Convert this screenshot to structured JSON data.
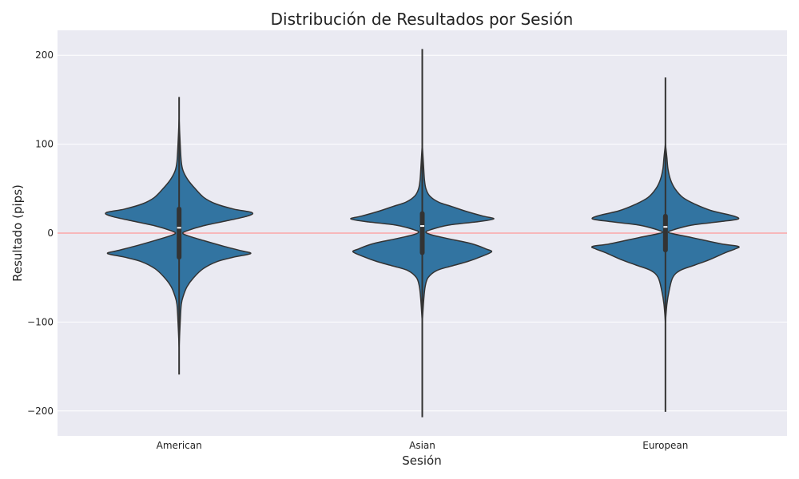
{
  "chart_data": {
    "type": "violin",
    "title": "Distribución de Resultados por Sesión",
    "xlabel": "Sesión",
    "ylabel": "Resultado (pips)",
    "ylim": [
      -228,
      228
    ],
    "yticks": [
      200,
      100,
      0,
      -100,
      -200
    ],
    "ytick_labels": [
      "200",
      "100",
      "0",
      "−100",
      "−200"
    ],
    "grid": true,
    "reference_line": {
      "y": 0,
      "color": "#ff9999"
    },
    "colors": {
      "background": "#eaeaf2",
      "violin_fill": "#3274a1",
      "edge": "#333333",
      "grid": "#ffffff"
    },
    "categories": [
      "American",
      "Asian",
      "European"
    ],
    "series": [
      {
        "category": "American",
        "min": -159,
        "max": 153,
        "median": 6,
        "q1": -27,
        "q3": 27,
        "density": [
          [
            -128,
            0.0
          ],
          [
            -100,
            0.015
          ],
          [
            -80,
            0.03
          ],
          [
            -70,
            0.06
          ],
          [
            -60,
            0.11
          ],
          [
            -50,
            0.2
          ],
          [
            -40,
            0.33
          ],
          [
            -32,
            0.52
          ],
          [
            -27,
            0.75
          ],
          [
            -23,
            0.98
          ],
          [
            -20,
            0.86
          ],
          [
            -15,
            0.62
          ],
          [
            -8,
            0.32
          ],
          [
            -3,
            0.12
          ],
          [
            0,
            0.05
          ],
          [
            3,
            0.12
          ],
          [
            8,
            0.32
          ],
          [
            14,
            0.66
          ],
          [
            19,
            0.93
          ],
          [
            23,
            1.0
          ],
          [
            27,
            0.75
          ],
          [
            33,
            0.5
          ],
          [
            40,
            0.34
          ],
          [
            50,
            0.22
          ],
          [
            60,
            0.12
          ],
          [
            70,
            0.055
          ],
          [
            80,
            0.03
          ],
          [
            100,
            0.015
          ],
          [
            128,
            0.0
          ]
        ]
      },
      {
        "category": "Asian",
        "min": -207,
        "max": 207,
        "median": 8,
        "q1": -22,
        "q3": 22,
        "density": [
          [
            -100,
            0.0
          ],
          [
            -75,
            0.02
          ],
          [
            -60,
            0.04
          ],
          [
            -50,
            0.08
          ],
          [
            -42,
            0.2
          ],
          [
            -37,
            0.4
          ],
          [
            -32,
            0.62
          ],
          [
            -26,
            0.82
          ],
          [
            -21,
            0.95
          ],
          [
            -18,
            0.88
          ],
          [
            -12,
            0.68
          ],
          [
            -6,
            0.34
          ],
          [
            -2,
            0.13
          ],
          [
            1,
            0.05
          ],
          [
            4,
            0.12
          ],
          [
            9,
            0.36
          ],
          [
            13,
            0.78
          ],
          [
            16,
            0.98
          ],
          [
            19,
            0.84
          ],
          [
            24,
            0.62
          ],
          [
            30,
            0.4
          ],
          [
            35,
            0.22
          ],
          [
            42,
            0.1
          ],
          [
            50,
            0.05
          ],
          [
            60,
            0.03
          ],
          [
            75,
            0.018
          ],
          [
            100,
            0.0
          ]
        ]
      },
      {
        "category": "European",
        "min": -201,
        "max": 175,
        "median": 7,
        "q1": -19,
        "q3": 19,
        "density": [
          [
            -100,
            0.0
          ],
          [
            -80,
            0.02
          ],
          [
            -65,
            0.05
          ],
          [
            -50,
            0.1
          ],
          [
            -42,
            0.2
          ],
          [
            -36,
            0.4
          ],
          [
            -30,
            0.6
          ],
          [
            -22,
            0.82
          ],
          [
            -18,
            0.95
          ],
          [
            -15,
            1.0
          ],
          [
            -12,
            0.76
          ],
          [
            -5,
            0.36
          ],
          [
            -1,
            0.12
          ],
          [
            1,
            0.04
          ],
          [
            4,
            0.12
          ],
          [
            9,
            0.36
          ],
          [
            13,
            0.76
          ],
          [
            16,
            1.0
          ],
          [
            20,
            0.9
          ],
          [
            25,
            0.64
          ],
          [
            32,
            0.42
          ],
          [
            40,
            0.24
          ],
          [
            50,
            0.13
          ],
          [
            60,
            0.07
          ],
          [
            72,
            0.035
          ],
          [
            85,
            0.02
          ],
          [
            100,
            0.0
          ]
        ]
      }
    ]
  }
}
